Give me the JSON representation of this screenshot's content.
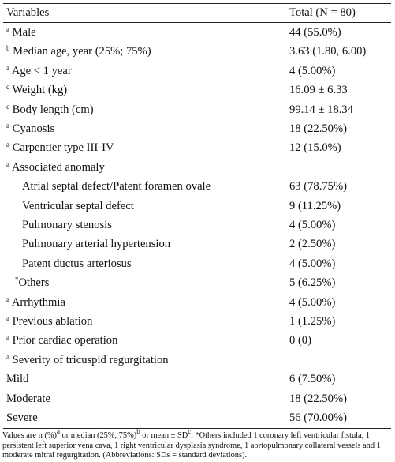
{
  "table": {
    "header": {
      "variable": "Variables",
      "total": "Total (N = 80)"
    },
    "rows": [
      {
        "mark": "a",
        "label": "Male",
        "value": "44 (55.0%)"
      },
      {
        "mark": "b",
        "label": "Median age, year (25%; 75%)",
        "value": "3.63 (1.80, 6.00)"
      },
      {
        "mark": "a",
        "label": "Age < 1 year",
        "value": "4 (5.00%)"
      },
      {
        "mark": "c",
        "label": "Weight (kg)",
        "value": "16.09 ± 6.33"
      },
      {
        "mark": "c",
        "label": "Body length (cm)",
        "value": "99.14 ± 18.34"
      },
      {
        "mark": "a",
        "label": "Cyanosis",
        "value": "18 (22.50%)"
      },
      {
        "mark": "a",
        "label": "Carpentier type III-IV",
        "value": "12 (15.0%)"
      },
      {
        "mark": "a",
        "label": "Associated anomaly",
        "value": ""
      },
      {
        "mark": "",
        "label": "Atrial septal defect/Patent foramen ovale",
        "value": "63 (78.75%)"
      },
      {
        "mark": "",
        "label": "Ventricular septal defect",
        "value": "9 (11.25%)"
      },
      {
        "mark": "",
        "label": "Pulmonary stenosis",
        "value": "4 (5.00%)"
      },
      {
        "mark": "",
        "label": "Pulmonary arterial hypertension",
        "value": "2 (2.50%)"
      },
      {
        "mark": "",
        "label": "Patent ductus arteriosus",
        "value": "4 (5.00%)"
      },
      {
        "mark": "*",
        "label": "Others",
        "value": "5 (6.25%)"
      },
      {
        "mark": "a",
        "label": "Arrhythmia",
        "value": "4 (5.00%)"
      },
      {
        "mark": "a",
        "label": "Previous ablation",
        "value": "1 (1.25%)"
      },
      {
        "mark": "a",
        "label": "Prior cardiac operation",
        "value": "0 (0)"
      },
      {
        "mark": "a",
        "label": "Severity of tricuspid regurgitation",
        "value": ""
      },
      {
        "mark": "",
        "label": "Mild",
        "value": "6 (7.50%)"
      },
      {
        "mark": "",
        "label": "Moderate",
        "value": "18 (22.50%)"
      },
      {
        "mark": "",
        "label": "Severe",
        "value": "56 (70.00%)"
      }
    ]
  },
  "footnote": {
    "part1": "Values are n (%)",
    "sup_a": "a",
    "part2": " or median (25%, 75%)",
    "sup_b": "b",
    "part3": " or mean ± SD",
    "sup_c": "c",
    "part4": ". *Others included 1 coronary left ventricular fistula, 1 persistent left superior vena cava, 1 right ventricular dysplasia syndrome, 1 aortopulmonary collateral vessels and 1 moderate mitral regurgitation. (Abbreviations: SDs = standard deviations)."
  }
}
